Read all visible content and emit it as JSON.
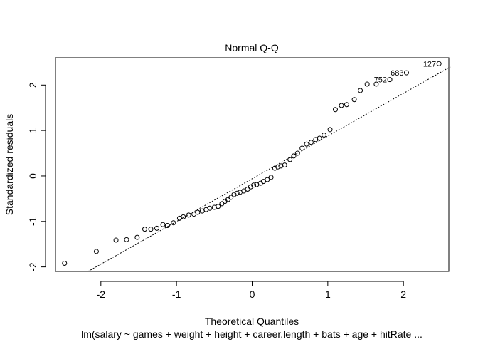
{
  "chart_data": {
    "type": "scatter",
    "title": "Normal Q-Q",
    "xlabel": "Theoretical Quantiles",
    "ylabel": "Standardized residuals",
    "subtitle": "lm(salary ~ games + weight + height + career.length + bats + age + hitRate  ...",
    "xlim": [
      -2.6,
      2.6
    ],
    "ylim": [
      -2.1,
      2.6
    ],
    "x_ticks": [
      -2,
      -1,
      0,
      1,
      2
    ],
    "y_ticks": [
      -2,
      -1,
      0,
      1,
      2
    ],
    "x_tick_labels": [
      "-2",
      "-1",
      "0",
      "1",
      "2"
    ],
    "y_tick_labels": [
      "-2",
      "-1",
      "0",
      "1",
      "2"
    ],
    "reference_line": {
      "x": [
        -2.17,
        2.62
      ],
      "y": [
        -2.1,
        2.4
      ]
    },
    "points": [
      [
        -2.48,
        -1.92
      ],
      [
        -2.06,
        -1.66
      ],
      [
        -1.8,
        -1.41
      ],
      [
        -1.66,
        -1.4
      ],
      [
        -1.52,
        -1.35
      ],
      [
        -1.42,
        -1.17
      ],
      [
        -1.34,
        -1.17
      ],
      [
        -1.26,
        -1.15
      ],
      [
        -1.18,
        -1.07
      ],
      [
        -1.12,
        -1.09
      ],
      [
        -1.04,
        -1.03
      ],
      [
        -0.96,
        -0.93
      ],
      [
        -0.91,
        -0.9
      ],
      [
        -0.84,
        -0.86
      ],
      [
        -0.77,
        -0.84
      ],
      [
        -0.72,
        -0.8
      ],
      [
        -0.66,
        -0.77
      ],
      [
        -0.61,
        -0.74
      ],
      [
        -0.56,
        -0.71
      ],
      [
        -0.5,
        -0.69
      ],
      [
        -0.45,
        -0.67
      ],
      [
        -0.4,
        -0.61
      ],
      [
        -0.36,
        -0.56
      ],
      [
        -0.32,
        -0.52
      ],
      [
        -0.28,
        -0.47
      ],
      [
        -0.24,
        -0.41
      ],
      [
        -0.2,
        -0.38
      ],
      [
        -0.16,
        -0.36
      ],
      [
        -0.11,
        -0.33
      ],
      [
        -0.06,
        -0.29
      ],
      [
        -0.02,
        -0.24
      ],
      [
        0.02,
        -0.2
      ],
      [
        0.06,
        -0.19
      ],
      [
        0.11,
        -0.16
      ],
      [
        0.15,
        -0.12
      ],
      [
        0.2,
        -0.08
      ],
      [
        0.25,
        -0.03
      ],
      [
        0.3,
        0.17
      ],
      [
        0.34,
        0.2
      ],
      [
        0.38,
        0.22
      ],
      [
        0.43,
        0.24
      ],
      [
        0.5,
        0.36
      ],
      [
        0.55,
        0.44
      ],
      [
        0.6,
        0.5
      ],
      [
        0.66,
        0.61
      ],
      [
        0.72,
        0.7
      ],
      [
        0.78,
        0.74
      ],
      [
        0.84,
        0.8
      ],
      [
        0.89,
        0.83
      ],
      [
        0.95,
        0.9
      ],
      [
        1.03,
        1.02
      ],
      [
        1.1,
        1.46
      ],
      [
        1.18,
        1.55
      ],
      [
        1.25,
        1.57
      ],
      [
        1.35,
        1.68
      ],
      [
        1.43,
        1.88
      ],
      [
        1.52,
        2.02
      ],
      [
        1.64,
        2.02
      ],
      [
        1.82,
        2.12
      ],
      [
        2.04,
        2.27
      ],
      [
        2.47,
        2.47
      ]
    ],
    "point_labels": [
      {
        "x": 1.82,
        "y": 2.12,
        "label": "752"
      },
      {
        "x": 2.04,
        "y": 2.27,
        "label": "683"
      },
      {
        "x": 2.47,
        "y": 2.47,
        "label": "127"
      }
    ]
  }
}
